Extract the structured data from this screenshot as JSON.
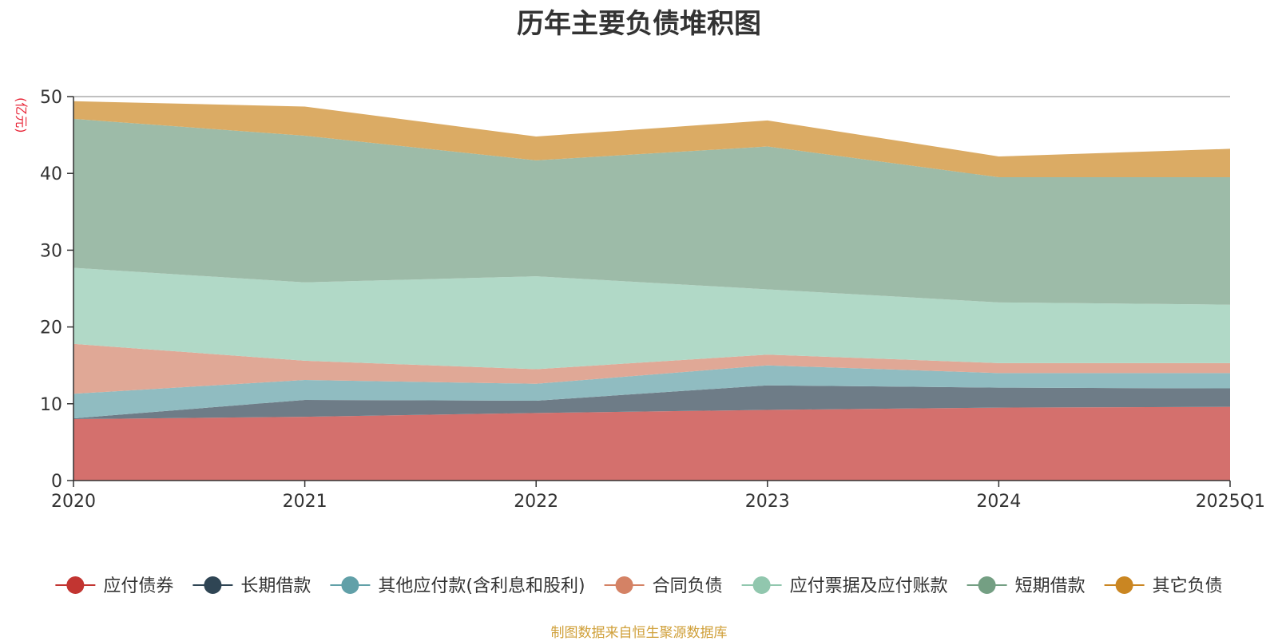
{
  "chart_data": {
    "type": "area",
    "stacked": true,
    "title": "历年主要负债堆积图",
    "ylabel": "(亿元)",
    "xlabel": "",
    "x": [
      "2020",
      "2021",
      "2022",
      "2023",
      "2024",
      "2025Q1"
    ],
    "ylim": [
      0,
      50
    ],
    "yticks": [
      0,
      10,
      20,
      30,
      40,
      50
    ],
    "grid": true,
    "legend_position": "bottom",
    "series": [
      {
        "name": "应付债券",
        "color": "#c23531",
        "fill": "#d4706d",
        "values": [
          8.0,
          8.3,
          8.8,
          9.2,
          9.5,
          9.6
        ]
      },
      {
        "name": "长期借款",
        "color": "#2f4554",
        "fill": "#6e7c87",
        "values": [
          0.1,
          2.2,
          1.6,
          3.2,
          2.6,
          2.4
        ]
      },
      {
        "name": "其他应付款(含利息和股利)",
        "color": "#61a0a8",
        "fill": "#90bcc1",
        "values": [
          3.2,
          2.6,
          2.2,
          2.6,
          1.9,
          2.0
        ]
      },
      {
        "name": "合同负债",
        "color": "#d48265",
        "fill": "#e0a896",
        "values": [
          6.5,
          2.5,
          1.9,
          1.4,
          1.3,
          1.3
        ]
      },
      {
        "name": "应付票据及应付账款",
        "color": "#91c7ae",
        "fill": "#b1d9c7",
        "values": [
          9.9,
          10.2,
          12.1,
          8.5,
          7.9,
          7.6
        ]
      },
      {
        "name": "短期借款",
        "color": "#749f83",
        "fill": "#9dbba8",
        "values": [
          19.4,
          19.1,
          15.1,
          18.6,
          16.3,
          16.6
        ]
      },
      {
        "name": "其它负债",
        "color": "#ca8622",
        "fill": "#dbab64",
        "values": [
          2.3,
          3.8,
          3.1,
          3.4,
          2.7,
          3.7
        ]
      }
    ]
  },
  "source_note": "制图数据来自恒生聚源数据库"
}
